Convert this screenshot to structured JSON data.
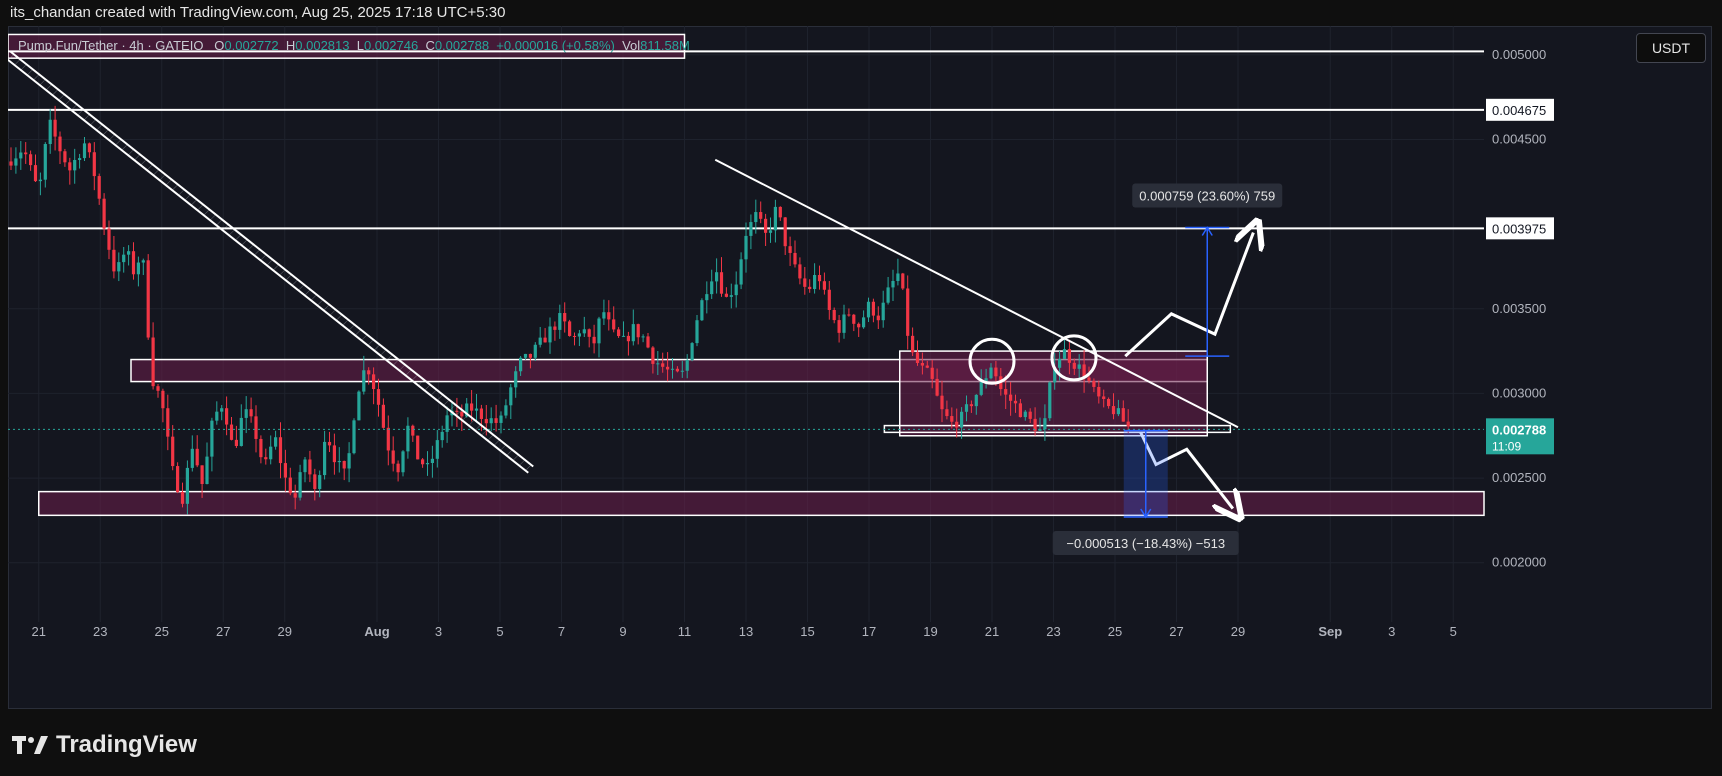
{
  "header": {
    "attribution": "its_chandan created with TradingView.com, Aug 25, 2025 17:18 UTC+5:30"
  },
  "legend": {
    "symbol": "Pump.Fun/Tether · 4h · GATEIO",
    "open": "0.002772",
    "high": "0.002813",
    "low": "0.002746",
    "close": "0.002788",
    "change": "+0.000016 (+0.58%)",
    "volume": "811.58M",
    "open_label": "O",
    "high_label": "H",
    "low_label": "L",
    "close_label": "C",
    "volume_label": "Vol"
  },
  "currency_button": "USDT",
  "brand": {
    "name": "TradingView"
  },
  "colors": {
    "up": "#26a69a",
    "down": "#f23645",
    "zone": "#6b1f4a",
    "axis_text": "#b2b5be",
    "last_price_bg": "#26a69a"
  },
  "chart_data": {
    "type": "candlestick",
    "timeframe": "4h",
    "x_range": [
      "2025-07-20",
      "2025-09-06"
    ],
    "y_range": [
      0.00165,
      0.00517
    ],
    "y_ticks": [
      "0.005000",
      "0.004500",
      "0.003500",
      "0.003000",
      "0.002500",
      "0.002000"
    ],
    "x_ticks": [
      {
        "date": "2025-07-21",
        "label": "21"
      },
      {
        "date": "2025-07-23",
        "label": "23"
      },
      {
        "date": "2025-07-25",
        "label": "25"
      },
      {
        "date": "2025-07-27",
        "label": "27"
      },
      {
        "date": "2025-07-29",
        "label": "29"
      },
      {
        "date": "2025-08-01",
        "label": "Aug"
      },
      {
        "date": "2025-08-03",
        "label": "3"
      },
      {
        "date": "2025-08-05",
        "label": "5"
      },
      {
        "date": "2025-08-07",
        "label": "7"
      },
      {
        "date": "2025-08-09",
        "label": "9"
      },
      {
        "date": "2025-08-11",
        "label": "11"
      },
      {
        "date": "2025-08-13",
        "label": "13"
      },
      {
        "date": "2025-08-15",
        "label": "15"
      },
      {
        "date": "2025-08-17",
        "label": "17"
      },
      {
        "date": "2025-08-19",
        "label": "19"
      },
      {
        "date": "2025-08-21",
        "label": "21"
      },
      {
        "date": "2025-08-23",
        "label": "23"
      },
      {
        "date": "2025-08-25",
        "label": "25"
      },
      {
        "date": "2025-08-27",
        "label": "27"
      },
      {
        "date": "2025-08-29",
        "label": "29"
      },
      {
        "date": "2025-09-01",
        "label": "Sep"
      },
      {
        "date": "2025-09-03",
        "label": "3"
      },
      {
        "date": "2025-09-05",
        "label": "5"
      }
    ],
    "price_labels": [
      {
        "value": 0.004675,
        "text": "0.004675"
      },
      {
        "value": 0.003975,
        "text": "0.003975"
      }
    ],
    "last_price": {
      "value": 0.002788,
      "text": "0.002788",
      "countdown": "11:09"
    },
    "close_path": [
      [
        "2025-07-20 00:00",
        0.00437
      ],
      [
        "2025-07-20 12:00",
        0.00445
      ],
      [
        "2025-07-21 00:00",
        0.00418
      ],
      [
        "2025-07-21 08:00",
        0.0046
      ],
      [
        "2025-07-21 16:00",
        0.00445
      ],
      [
        "2025-07-22 00:00",
        0.00432
      ],
      [
        "2025-07-22 12:00",
        0.00448
      ],
      [
        "2025-07-22 20:00",
        0.00428
      ],
      [
        "2025-07-23 04:00",
        0.00395
      ],
      [
        "2025-07-23 12:00",
        0.0037
      ],
      [
        "2025-07-23 20:00",
        0.00385
      ],
      [
        "2025-07-24 04:00",
        0.00368
      ],
      [
        "2025-07-24 08:00",
        0.00392
      ],
      [
        "2025-07-24 16:00",
        0.0031
      ],
      [
        "2025-07-25 00:00",
        0.00295
      ],
      [
        "2025-07-25 08:00",
        0.00255
      ],
      [
        "2025-07-25 16:00",
        0.00238
      ],
      [
        "2025-07-26 00:00",
        0.0027
      ],
      [
        "2025-07-26 08:00",
        0.00245
      ],
      [
        "2025-07-26 16:00",
        0.00285
      ],
      [
        "2025-07-27 00:00",
        0.00295
      ],
      [
        "2025-07-27 08:00",
        0.00265
      ],
      [
        "2025-07-27 16:00",
        0.0029
      ],
      [
        "2025-07-28 00:00",
        0.0028
      ],
      [
        "2025-07-28 08:00",
        0.00255
      ],
      [
        "2025-07-28 16:00",
        0.00275
      ],
      [
        "2025-07-29 00:00",
        0.0025
      ],
      [
        "2025-07-29 08:00",
        0.00238
      ],
      [
        "2025-07-29 16:00",
        0.00262
      ],
      [
        "2025-07-30 00:00",
        0.0024
      ],
      [
        "2025-07-30 08:00",
        0.00278
      ],
      [
        "2025-07-30 16:00",
        0.0026
      ],
      [
        "2025-07-31 00:00",
        0.0025
      ],
      [
        "2025-07-31 08:00",
        0.003
      ],
      [
        "2025-07-31 16:00",
        0.00318
      ],
      [
        "2025-08-01 00:00",
        0.00298
      ],
      [
        "2025-08-01 08:00",
        0.0027
      ],
      [
        "2025-08-01 16:00",
        0.00255
      ],
      [
        "2025-08-02 00:00",
        0.0028
      ],
      [
        "2025-08-02 08:00",
        0.00262
      ],
      [
        "2025-08-02 16:00",
        0.00255
      ],
      [
        "2025-08-03 00:00",
        0.00272
      ],
      [
        "2025-08-03 08:00",
        0.0029
      ],
      [
        "2025-08-03 16:00",
        0.00285
      ],
      [
        "2025-08-04 00:00",
        0.00292
      ],
      [
        "2025-08-04 12:00",
        0.00286
      ],
      [
        "2025-08-05 00:00",
        0.00282
      ],
      [
        "2025-08-05 08:00",
        0.00302
      ],
      [
        "2025-08-05 16:00",
        0.00318
      ],
      [
        "2025-08-06 00:00",
        0.00322
      ],
      [
        "2025-08-06 08:00",
        0.0033
      ],
      [
        "2025-08-06 16:00",
        0.00338
      ],
      [
        "2025-08-07 00:00",
        0.00345
      ],
      [
        "2025-08-07 08:00",
        0.0033
      ],
      [
        "2025-08-07 16:00",
        0.0034
      ],
      [
        "2025-08-08 00:00",
        0.00326
      ],
      [
        "2025-08-08 08:00",
        0.0035
      ],
      [
        "2025-08-08 16:00",
        0.00335
      ],
      [
        "2025-08-09 00:00",
        0.0033
      ],
      [
        "2025-08-09 08:00",
        0.00338
      ],
      [
        "2025-08-09 16:00",
        0.00333
      ],
      [
        "2025-08-10 00:00",
        0.0032
      ],
      [
        "2025-08-10 08:00",
        0.00315
      ],
      [
        "2025-08-10 16:00",
        0.0031
      ],
      [
        "2025-08-11 00:00",
        0.00312
      ],
      [
        "2025-08-11 08:00",
        0.0034
      ],
      [
        "2025-08-11 16:00",
        0.0036
      ],
      [
        "2025-08-12 00:00",
        0.00375
      ],
      [
        "2025-08-12 08:00",
        0.00355
      ],
      [
        "2025-08-12 16:00",
        0.00365
      ],
      [
        "2025-08-13 00:00",
        0.00395
      ],
      [
        "2025-08-13 08:00",
        0.00405
      ],
      [
        "2025-08-13 16:00",
        0.00392
      ],
      [
        "2025-08-14 00:00",
        0.0041
      ],
      [
        "2025-08-14 08:00",
        0.00385
      ],
      [
        "2025-08-14 16:00",
        0.0037
      ],
      [
        "2025-08-15 00:00",
        0.0036
      ],
      [
        "2025-08-15 08:00",
        0.00372
      ],
      [
        "2025-08-15 16:00",
        0.0035
      ],
      [
        "2025-08-16 00:00",
        0.00338
      ],
      [
        "2025-08-16 08:00",
        0.00348
      ],
      [
        "2025-08-16 16:00",
        0.0034
      ],
      [
        "2025-08-17 00:00",
        0.00352
      ],
      [
        "2025-08-17 08:00",
        0.00345
      ],
      [
        "2025-08-17 16:00",
        0.00362
      ],
      [
        "2025-08-18 00:00",
        0.00372
      ],
      [
        "2025-08-18 08:00",
        0.00325
      ],
      [
        "2025-08-18 16:00",
        0.00315
      ],
      [
        "2025-08-19 00:00",
        0.0031
      ],
      [
        "2025-08-19 08:00",
        0.0029
      ],
      [
        "2025-08-19 16:00",
        0.00282
      ],
      [
        "2025-08-20 00:00",
        0.00285
      ],
      [
        "2025-08-20 08:00",
        0.00295
      ],
      [
        "2025-08-20 16:00",
        0.00305
      ],
      [
        "2025-08-21 00:00",
        0.00318
      ],
      [
        "2025-08-21 08:00",
        0.003
      ],
      [
        "2025-08-21 16:00",
        0.00295
      ],
      [
        "2025-08-22 00:00",
        0.00288
      ],
      [
        "2025-08-22 08:00",
        0.00282
      ],
      [
        "2025-08-22 16:00",
        0.00276
      ],
      [
        "2025-08-23 00:00",
        0.00318
      ],
      [
        "2025-08-23 08:00",
        0.00325
      ],
      [
        "2025-08-23 16:00",
        0.00318
      ],
      [
        "2025-08-24 00:00",
        0.00312
      ],
      [
        "2025-08-24 08:00",
        0.003
      ],
      [
        "2025-08-24 16:00",
        0.00292
      ],
      [
        "2025-08-25 00:00",
        0.0029
      ],
      [
        "2025-08-25 08:00",
        0.00282
      ],
      [
        "2025-08-25 12:00",
        0.002788
      ]
    ],
    "horizontal_lines": [
      0.00502,
      0.004675,
      0.003975
    ],
    "zones": [
      {
        "from": "2025-07-20",
        "to": "2025-08-11",
        "low": 0.00498,
        "high": 0.00512
      },
      {
        "from": "2025-07-24",
        "to": "2025-08-28",
        "low": 0.00307,
        "high": 0.0032
      },
      {
        "from": "2025-08-18",
        "to": "2025-08-28",
        "low": 0.00275,
        "high": 0.00325
      },
      {
        "from": "2025-07-21",
        "to": "2025-09-06",
        "low": 0.00228,
        "high": 0.00242
      }
    ],
    "trendlines": [
      {
        "from": [
          "2025-07-20",
          0.005
        ],
        "to": [
          "2025-08-06",
          0.00255
        ],
        "style": "channel"
      },
      {
        "from": [
          "2025-08-12",
          0.00438
        ],
        "to": [
          "2025-08-29",
          0.0028
        ],
        "style": "line"
      }
    ],
    "annotations": [
      {
        "type": "measure",
        "text": "0.000759 (23.60%) 759",
        "from": 0.00322,
        "to": 0.00398,
        "date": "2025-08-28"
      },
      {
        "type": "measure",
        "text": "−0.000513 (−18.43%) −513",
        "from": 0.00278,
        "to": 0.00227,
        "date": "2025-08-26"
      }
    ]
  }
}
